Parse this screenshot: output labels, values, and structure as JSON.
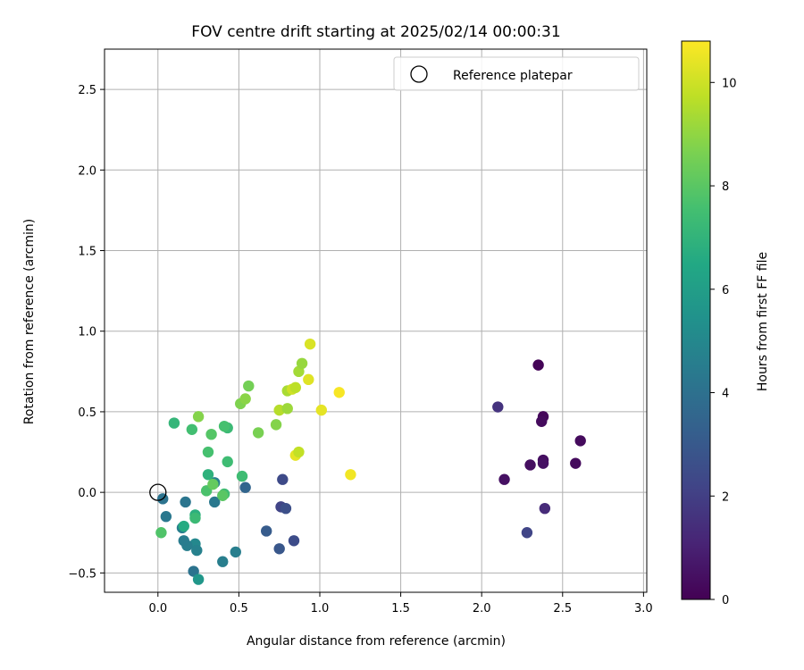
{
  "chart_data": {
    "type": "scatter",
    "title": "FOV centre drift starting at 2025/02/14 00:00:31",
    "xlabel": "Angular distance from reference (arcmin)",
    "ylabel": "Rotation from reference (arcmin)",
    "xlim": [
      -0.33,
      3.02
    ],
    "ylim": [
      -0.62,
      2.75
    ],
    "xticks": [
      0.0,
      0.5,
      1.0,
      1.5,
      2.0,
      2.5,
      3.0
    ],
    "xtick_labels": [
      "0.0",
      "0.5",
      "1.0",
      "1.5",
      "2.0",
      "2.5",
      "3.0"
    ],
    "yticks": [
      -0.5,
      0.0,
      0.5,
      1.0,
      1.5,
      2.0,
      2.5
    ],
    "ytick_labels": [
      "−0.5",
      "0.0",
      "0.5",
      "1.0",
      "1.5",
      "2.0",
      "2.5"
    ],
    "grid": true,
    "legend": {
      "position": "top-right",
      "entries": [
        {
          "label": "Reference platepar",
          "marker": "open-circle"
        }
      ]
    },
    "reference_point": {
      "x": 0.0,
      "y": 0.0
    },
    "colorbar": {
      "label": "Hours from first FF file",
      "colormap": "viridis",
      "range": [
        0,
        10.8
      ],
      "ticks": [
        0,
        2,
        4,
        6,
        8,
        10
      ],
      "tick_labels": [
        "0",
        "2",
        "4",
        "6",
        "8",
        "10"
      ]
    },
    "points": [
      {
        "x": 2.35,
        "y": 0.79,
        "c": 0.1
      },
      {
        "x": 2.38,
        "y": 0.47,
        "c": 0.2
      },
      {
        "x": 2.37,
        "y": 0.44,
        "c": 0.3
      },
      {
        "x": 2.61,
        "y": 0.32,
        "c": 0.3
      },
      {
        "x": 2.38,
        "y": 0.2,
        "c": 0.4
      },
      {
        "x": 2.58,
        "y": 0.18,
        "c": 0.3
      },
      {
        "x": 2.38,
        "y": 0.18,
        "c": 0.5
      },
      {
        "x": 2.3,
        "y": 0.17,
        "c": 0.4
      },
      {
        "x": 2.14,
        "y": 0.08,
        "c": 0.5
      },
      {
        "x": 2.1,
        "y": 0.53,
        "c": 1.6
      },
      {
        "x": 2.39,
        "y": -0.1,
        "c": 1.3
      },
      {
        "x": 2.28,
        "y": -0.25,
        "c": 2.2
      },
      {
        "x": 0.77,
        "y": 0.08,
        "c": 2.4
      },
      {
        "x": 0.76,
        "y": -0.09,
        "c": 2.2
      },
      {
        "x": 0.79,
        "y": -0.1,
        "c": 2.6
      },
      {
        "x": 0.84,
        "y": -0.3,
        "c": 2.5
      },
      {
        "x": 0.75,
        "y": -0.35,
        "c": 2.9
      },
      {
        "x": 0.67,
        "y": -0.24,
        "c": 3.1
      },
      {
        "x": 0.54,
        "y": 0.03,
        "c": 3.5
      },
      {
        "x": 0.48,
        "y": -0.37,
        "c": 4.6
      },
      {
        "x": 0.4,
        "y": -0.43,
        "c": 4.6
      },
      {
        "x": 0.35,
        "y": 0.06,
        "c": 4.7
      },
      {
        "x": 0.35,
        "y": -0.06,
        "c": 4.3
      },
      {
        "x": 0.22,
        "y": -0.49,
        "c": 4.1
      },
      {
        "x": 0.25,
        "y": -0.54,
        "c": 5.7
      },
      {
        "x": 0.23,
        "y": -0.32,
        "c": 5.0
      },
      {
        "x": 0.24,
        "y": -0.36,
        "c": 4.7
      },
      {
        "x": 0.18,
        "y": -0.33,
        "c": 4.6
      },
      {
        "x": 0.16,
        "y": -0.3,
        "c": 4.5
      },
      {
        "x": 0.17,
        "y": -0.06,
        "c": 4.2
      },
      {
        "x": 0.03,
        "y": -0.04,
        "c": 4.1
      },
      {
        "x": 0.05,
        "y": -0.15,
        "c": 4.3
      },
      {
        "x": 0.15,
        "y": -0.22,
        "c": 4.6
      },
      {
        "x": 0.16,
        "y": -0.21,
        "c": 6.6
      },
      {
        "x": 0.23,
        "y": -0.14,
        "c": 6.8
      },
      {
        "x": 0.23,
        "y": -0.16,
        "c": 7.3
      },
      {
        "x": 0.02,
        "y": -0.25,
        "c": 7.8
      },
      {
        "x": 0.3,
        "y": 0.01,
        "c": 7.7
      },
      {
        "x": 0.31,
        "y": 0.11,
        "c": 6.9
      },
      {
        "x": 0.34,
        "y": 0.05,
        "c": 8.2
      },
      {
        "x": 0.41,
        "y": -0.01,
        "c": 7.4
      },
      {
        "x": 0.4,
        "y": -0.02,
        "c": 8.0
      },
      {
        "x": 0.31,
        "y": 0.25,
        "c": 7.6
      },
      {
        "x": 0.43,
        "y": 0.19,
        "c": 7.4
      },
      {
        "x": 0.52,
        "y": 0.1,
        "c": 7.4
      },
      {
        "x": 0.1,
        "y": 0.43,
        "c": 7.1
      },
      {
        "x": 0.21,
        "y": 0.39,
        "c": 7.5
      },
      {
        "x": 0.33,
        "y": 0.36,
        "c": 7.9
      },
      {
        "x": 0.43,
        "y": 0.4,
        "c": 7.3
      },
      {
        "x": 0.41,
        "y": 0.41,
        "c": 7.6
      },
      {
        "x": 0.25,
        "y": 0.47,
        "c": 8.8
      },
      {
        "x": 0.51,
        "y": 0.55,
        "c": 8.7
      },
      {
        "x": 0.54,
        "y": 0.58,
        "c": 8.9
      },
      {
        "x": 0.56,
        "y": 0.66,
        "c": 8.5
      },
      {
        "x": 0.62,
        "y": 0.37,
        "c": 8.6
      },
      {
        "x": 0.73,
        "y": 0.42,
        "c": 8.8
      },
      {
        "x": 0.75,
        "y": 0.51,
        "c": 9.6
      },
      {
        "x": 0.8,
        "y": 0.52,
        "c": 9.2
      },
      {
        "x": 0.8,
        "y": 0.63,
        "c": 9.4
      },
      {
        "x": 0.83,
        "y": 0.64,
        "c": 10.0
      },
      {
        "x": 0.85,
        "y": 0.65,
        "c": 9.7
      },
      {
        "x": 0.87,
        "y": 0.75,
        "c": 9.3
      },
      {
        "x": 0.89,
        "y": 0.8,
        "c": 9.1
      },
      {
        "x": 0.93,
        "y": 0.7,
        "c": 10.3
      },
      {
        "x": 0.94,
        "y": 0.92,
        "c": 10.2
      },
      {
        "x": 0.85,
        "y": 0.23,
        "c": 10.4
      },
      {
        "x": 0.87,
        "y": 0.25,
        "c": 9.8
      },
      {
        "x": 1.01,
        "y": 0.51,
        "c": 10.4
      },
      {
        "x": 1.12,
        "y": 0.62,
        "c": 10.7
      },
      {
        "x": 1.19,
        "y": 0.11,
        "c": 10.6
      }
    ]
  }
}
